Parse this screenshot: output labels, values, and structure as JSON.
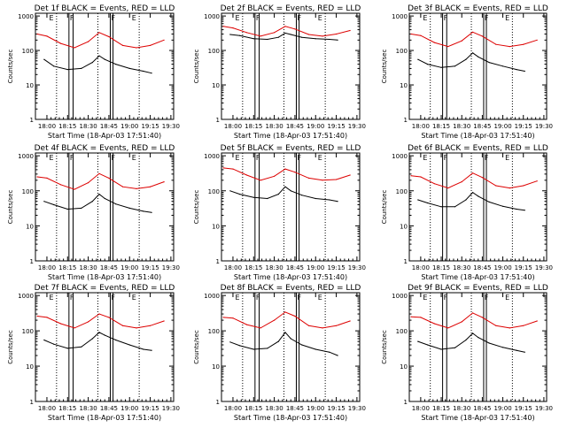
{
  "figure": {
    "xtick_labels": [
      "18:00",
      "18:15",
      "18:30",
      "18:45",
      "19:00",
      "19:15",
      "19:30"
    ],
    "ytick_labels": [
      "1",
      "10",
      "100",
      "1000"
    ],
    "marker_letters": [
      "E",
      "F",
      "F",
      "E"
    ],
    "colors": {
      "events": "#000000",
      "lld": "#dd0000",
      "axes": "#000000"
    }
  },
  "chart_data": [
    {
      "type": "line",
      "title": "Det 1f BLACK = Events, RED = LLD",
      "xlabel": "Start Time (18-Apr-03 17:51:40)",
      "ylabel": "Counts/sec",
      "yscale": "log",
      "xlim": [
        "17:51:40",
        "19:32"
      ],
      "ylim": [
        1,
        1200
      ],
      "series": [
        {
          "name": "Events",
          "values": [
            [
              "17:58",
              55
            ],
            [
              "18:05",
              35
            ],
            [
              "18:15",
              28
            ],
            [
              "18:25",
              30
            ],
            [
              "18:33",
              45
            ],
            [
              "18:38",
              70
            ],
            [
              "18:42",
              55
            ],
            [
              "18:50",
              40
            ],
            [
              "19:00",
              30
            ],
            [
              "19:10",
              25
            ],
            [
              "19:16",
              22
            ]
          ]
        },
        {
          "name": "LLD",
          "values": [
            [
              "17:53",
              300
            ],
            [
              "18:00",
              260
            ],
            [
              "18:10",
              160
            ],
            [
              "18:20",
              120
            ],
            [
              "18:30",
              180
            ],
            [
              "18:38",
              330
            ],
            [
              "18:45",
              250
            ],
            [
              "18:55",
              140
            ],
            [
              "19:05",
              120
            ],
            [
              "19:15",
              140
            ],
            [
              "19:25",
              200
            ]
          ]
        }
      ]
    },
    {
      "type": "line",
      "title": "Det 2f BLACK = Events, RED = LLD",
      "xlabel": "Start Time (18-Apr-03 17:51:40)",
      "ylabel": "Counts/sec",
      "yscale": "log",
      "xlim": [
        "17:51:40",
        "19:32"
      ],
      "ylim": [
        1,
        1200
      ],
      "series": [
        {
          "name": "Events",
          "values": [
            [
              "17:58",
              290
            ],
            [
              "18:05",
              270
            ],
            [
              "18:15",
              220
            ],
            [
              "18:25",
              210
            ],
            [
              "18:33",
              240
            ],
            [
              "18:38",
              320
            ],
            [
              "18:42",
              290
            ],
            [
              "18:50",
              240
            ],
            [
              "19:00",
              220
            ],
            [
              "19:10",
              210
            ],
            [
              "19:16",
              200
            ]
          ]
        },
        {
          "name": "LLD",
          "values": [
            [
              "17:53",
              500
            ],
            [
              "18:00",
              450
            ],
            [
              "18:10",
              330
            ],
            [
              "18:20",
              260
            ],
            [
              "18:30",
              330
            ],
            [
              "18:38",
              500
            ],
            [
              "18:45",
              420
            ],
            [
              "18:55",
              290
            ],
            [
              "19:05",
              260
            ],
            [
              "19:15",
              300
            ],
            [
              "19:25",
              380
            ]
          ]
        }
      ]
    },
    {
      "type": "line",
      "title": "Det 3f BLACK = Events, RED = LLD",
      "xlabel": "Start Time (18-Apr-03 17:51:40)",
      "ylabel": "Counts/sec",
      "yscale": "log",
      "xlim": [
        "17:51:40",
        "19:32"
      ],
      "ylim": [
        1,
        1200
      ],
      "series": [
        {
          "name": "Events",
          "values": [
            [
              "17:58",
              55
            ],
            [
              "18:05",
              40
            ],
            [
              "18:15",
              32
            ],
            [
              "18:25",
              35
            ],
            [
              "18:33",
              55
            ],
            [
              "18:38",
              85
            ],
            [
              "18:42",
              65
            ],
            [
              "18:50",
              45
            ],
            [
              "19:00",
              35
            ],
            [
              "19:10",
              28
            ],
            [
              "19:16",
              25
            ]
          ]
        },
        {
          "name": "LLD",
          "values": [
            [
              "17:53",
              300
            ],
            [
              "18:00",
              270
            ],
            [
              "18:10",
              170
            ],
            [
              "18:20",
              130
            ],
            [
              "18:30",
              190
            ],
            [
              "18:38",
              340
            ],
            [
              "18:45",
              260
            ],
            [
              "18:55",
              150
            ],
            [
              "19:05",
              130
            ],
            [
              "19:15",
              150
            ],
            [
              "19:25",
              200
            ]
          ]
        }
      ]
    },
    {
      "type": "line",
      "title": "Det 4f BLACK = Events, RED = LLD",
      "xlabel": "Start Time (18-Apr-03 17:51:40)",
      "ylabel": "Counts/sec",
      "yscale": "log",
      "xlim": [
        "17:51:40",
        "19:32"
      ],
      "ylim": [
        1,
        1200
      ],
      "series": [
        {
          "name": "Events",
          "values": [
            [
              "17:58",
              50
            ],
            [
              "18:05",
              40
            ],
            [
              "18:15",
              30
            ],
            [
              "18:25",
              32
            ],
            [
              "18:33",
              50
            ],
            [
              "18:38",
              80
            ],
            [
              "18:42",
              60
            ],
            [
              "18:50",
              42
            ],
            [
              "19:00",
              32
            ],
            [
              "19:10",
              26
            ],
            [
              "19:16",
              24
            ]
          ]
        },
        {
          "name": "LLD",
          "values": [
            [
              "17:53",
              250
            ],
            [
              "18:00",
              230
            ],
            [
              "18:10",
              150
            ],
            [
              "18:20",
              110
            ],
            [
              "18:30",
              170
            ],
            [
              "18:38",
              310
            ],
            [
              "18:45",
              230
            ],
            [
              "18:55",
              130
            ],
            [
              "19:05",
              115
            ],
            [
              "19:15",
              130
            ],
            [
              "19:25",
              180
            ]
          ]
        }
      ]
    },
    {
      "type": "line",
      "title": "Det 5f BLACK = Events, RED = LLD",
      "xlabel": "Start Time (18-Apr-03 17:51:40)",
      "ylabel": "Counts/sec",
      "yscale": "log",
      "xlim": [
        "17:51:40",
        "19:32"
      ],
      "ylim": [
        1,
        1200
      ],
      "series": [
        {
          "name": "Events",
          "values": [
            [
              "17:58",
              100
            ],
            [
              "18:05",
              80
            ],
            [
              "18:15",
              65
            ],
            [
              "18:25",
              60
            ],
            [
              "18:33",
              80
            ],
            [
              "18:38",
              130
            ],
            [
              "18:42",
              100
            ],
            [
              "18:50",
              75
            ],
            [
              "19:00",
              60
            ],
            [
              "19:10",
              55
            ],
            [
              "19:16",
              50
            ]
          ]
        },
        {
          "name": "LLD",
          "values": [
            [
              "17:53",
              450
            ],
            [
              "18:00",
              420
            ],
            [
              "18:10",
              280
            ],
            [
              "18:20",
              200
            ],
            [
              "18:30",
              260
            ],
            [
              "18:38",
              420
            ],
            [
              "18:45",
              340
            ],
            [
              "18:55",
              230
            ],
            [
              "19:05",
              200
            ],
            [
              "19:15",
              210
            ],
            [
              "19:25",
              280
            ]
          ]
        }
      ]
    },
    {
      "type": "line",
      "title": "Det 6f BLACK = Events, RED = LLD",
      "xlabel": "Start Time (18-Apr-03 17:51:40)",
      "ylabel": "Counts/sec",
      "yscale": "log",
      "xlim": [
        "17:51:40",
        "19:32"
      ],
      "ylim": [
        1,
        1200
      ],
      "series": [
        {
          "name": "Events",
          "values": [
            [
              "17:58",
              55
            ],
            [
              "18:05",
              45
            ],
            [
              "18:15",
              35
            ],
            [
              "18:25",
              35
            ],
            [
              "18:33",
              55
            ],
            [
              "18:38",
              90
            ],
            [
              "18:42",
              70
            ],
            [
              "18:50",
              48
            ],
            [
              "19:00",
              36
            ],
            [
              "19:10",
              30
            ],
            [
              "19:16",
              28
            ]
          ]
        },
        {
          "name": "LLD",
          "values": [
            [
              "17:53",
              270
            ],
            [
              "18:00",
              250
            ],
            [
              "18:10",
              160
            ],
            [
              "18:20",
              120
            ],
            [
              "18:30",
              180
            ],
            [
              "18:38",
              320
            ],
            [
              "18:45",
              240
            ],
            [
              "18:55",
              140
            ],
            [
              "19:05",
              120
            ],
            [
              "19:15",
              140
            ],
            [
              "19:25",
              190
            ]
          ]
        }
      ]
    },
    {
      "type": "line",
      "title": "Det 7f BLACK = Events, RED = LLD",
      "xlabel": "Start Time (18-Apr-03 17:51:40)",
      "ylabel": "Counts/sec",
      "yscale": "log",
      "xlim": [
        "17:51:40",
        "19:32"
      ],
      "ylim": [
        1,
        1200
      ],
      "series": [
        {
          "name": "Events",
          "values": [
            [
              "17:58",
              55
            ],
            [
              "18:05",
              42
            ],
            [
              "18:15",
              32
            ],
            [
              "18:25",
              35
            ],
            [
              "18:33",
              60
            ],
            [
              "18:38",
              90
            ],
            [
              "18:42",
              75
            ],
            [
              "18:50",
              55
            ],
            [
              "19:00",
              40
            ],
            [
              "19:10",
              30
            ],
            [
              "19:16",
              28
            ]
          ]
        },
        {
          "name": "LLD",
          "values": [
            [
              "17:53",
              260
            ],
            [
              "18:00",
              240
            ],
            [
              "18:10",
              160
            ],
            [
              "18:20",
              120
            ],
            [
              "18:30",
              180
            ],
            [
              "18:38",
              300
            ],
            [
              "18:45",
              240
            ],
            [
              "18:55",
              140
            ],
            [
              "19:05",
              120
            ],
            [
              "19:15",
              140
            ],
            [
              "19:25",
              190
            ]
          ]
        }
      ]
    },
    {
      "type": "line",
      "title": "Det 8f BLACK = Events, RED = LLD",
      "xlabel": "Start Time (18-Apr-03 17:51:40)",
      "ylabel": "Counts/sec",
      "yscale": "log",
      "xlim": [
        "17:51:40",
        "19:32"
      ],
      "ylim": [
        1,
        1200
      ],
      "series": [
        {
          "name": "Events",
          "values": [
            [
              "17:58",
              48
            ],
            [
              "18:05",
              38
            ],
            [
              "18:15",
              30
            ],
            [
              "18:25",
              32
            ],
            [
              "18:33",
              50
            ],
            [
              "18:38",
              90
            ],
            [
              "18:42",
              60
            ],
            [
              "18:50",
              40
            ],
            [
              "19:00",
              30
            ],
            [
              "19:10",
              25
            ],
            [
              "19:16",
              20
            ]
          ]
        },
        {
          "name": "LLD",
          "values": [
            [
              "17:53",
              240
            ],
            [
              "18:00",
              230
            ],
            [
              "18:10",
              150
            ],
            [
              "18:20",
              120
            ],
            [
              "18:30",
              200
            ],
            [
              "18:38",
              340
            ],
            [
              "18:45",
              260
            ],
            [
              "18:55",
              140
            ],
            [
              "19:05",
              120
            ],
            [
              "19:15",
              140
            ],
            [
              "19:25",
              190
            ]
          ]
        }
      ]
    },
    {
      "type": "line",
      "title": "Det 9f BLACK = Events, RED = LLD",
      "xlabel": "Start Time (18-Apr-03 17:51:40)",
      "ylabel": "Counts/sec",
      "yscale": "log",
      "xlim": [
        "17:51:40",
        "19:32"
      ],
      "ylim": [
        1,
        1200
      ],
      "series": [
        {
          "name": "Events",
          "values": [
            [
              "17:58",
              50
            ],
            [
              "18:05",
              40
            ],
            [
              "18:15",
              30
            ],
            [
              "18:25",
              33
            ],
            [
              "18:33",
              55
            ],
            [
              "18:38",
              85
            ],
            [
              "18:42",
              65
            ],
            [
              "18:50",
              45
            ],
            [
              "19:00",
              34
            ],
            [
              "19:10",
              28
            ],
            [
              "19:16",
              25
            ]
          ]
        },
        {
          "name": "LLD",
          "values": [
            [
              "17:53",
              250
            ],
            [
              "18:00",
              240
            ],
            [
              "18:10",
              160
            ],
            [
              "18:20",
              120
            ],
            [
              "18:30",
              180
            ],
            [
              "18:38",
              320
            ],
            [
              "18:45",
              240
            ],
            [
              "18:55",
              140
            ],
            [
              "19:05",
              120
            ],
            [
              "19:15",
              140
            ],
            [
              "19:25",
              190
            ]
          ]
        }
      ]
    }
  ]
}
